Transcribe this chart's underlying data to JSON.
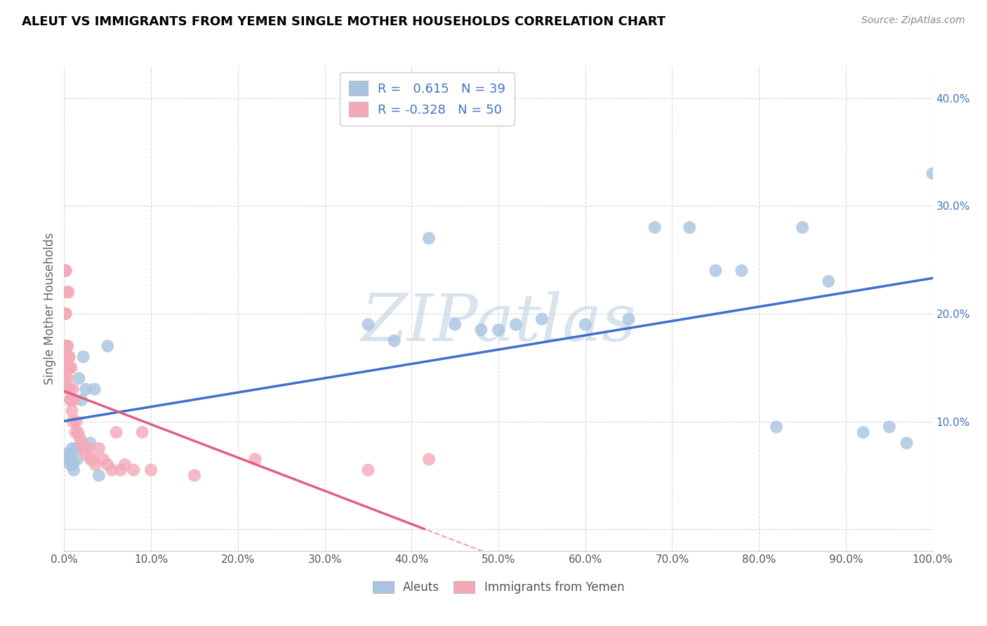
{
  "title": "ALEUT VS IMMIGRANTS FROM YEMEN SINGLE MOTHER HOUSEHOLDS CORRELATION CHART",
  "source": "Source: ZipAtlas.com",
  "ylabel": "Single Mother Households",
  "xmin": 0.0,
  "xmax": 1.0,
  "ymin": -0.02,
  "ymax": 0.43,
  "xticks": [
    0.0,
    0.1,
    0.2,
    0.3,
    0.4,
    0.5,
    0.6,
    0.7,
    0.8,
    0.9,
    1.0
  ],
  "xtick_labels": [
    "0.0%",
    "10.0%",
    "20.0%",
    "30.0%",
    "40.0%",
    "50.0%",
    "60.0%",
    "70.0%",
    "80.0%",
    "90.0%",
    "100.0%"
  ],
  "ytick_positions": [
    0.0,
    0.1,
    0.2,
    0.3,
    0.4
  ],
  "ytick_labels": [
    "",
    "10.0%",
    "20.0%",
    "30.0%",
    "40.0%"
  ],
  "aleut_color": "#a8c4e0",
  "yemen_color": "#f4a8b8",
  "aleut_line_color": "#3d6fcc",
  "yemen_line_color": "#e06080",
  "aleut_R": 0.615,
  "aleut_N": 39,
  "yemen_R": -0.328,
  "yemen_N": 50,
  "watermark": "ZIPatlas",
  "aleut_x": [
    0.003,
    0.005,
    0.006,
    0.007,
    0.008,
    0.009,
    0.01,
    0.011,
    0.013,
    0.015,
    0.017,
    0.02,
    0.022,
    0.025,
    0.03,
    0.035,
    0.04,
    0.05,
    0.35,
    0.38,
    0.42,
    0.45,
    0.48,
    0.5,
    0.52,
    0.55,
    0.6,
    0.65,
    0.68,
    0.72,
    0.75,
    0.78,
    0.82,
    0.85,
    0.88,
    0.92,
    0.95,
    0.97,
    1.0
  ],
  "aleut_y": [
    0.07,
    0.065,
    0.07,
    0.06,
    0.065,
    0.075,
    0.06,
    0.055,
    0.075,
    0.065,
    0.14,
    0.12,
    0.16,
    0.13,
    0.08,
    0.13,
    0.05,
    0.17,
    0.19,
    0.175,
    0.27,
    0.19,
    0.185,
    0.185,
    0.19,
    0.195,
    0.19,
    0.195,
    0.28,
    0.28,
    0.24,
    0.24,
    0.095,
    0.28,
    0.23,
    0.09,
    0.095,
    0.08,
    0.33
  ],
  "yemen_x": [
    0.001,
    0.001,
    0.001,
    0.001,
    0.002,
    0.002,
    0.002,
    0.003,
    0.003,
    0.003,
    0.004,
    0.004,
    0.005,
    0.005,
    0.005,
    0.006,
    0.006,
    0.007,
    0.007,
    0.008,
    0.008,
    0.009,
    0.01,
    0.01,
    0.011,
    0.013,
    0.014,
    0.016,
    0.018,
    0.02,
    0.022,
    0.025,
    0.028,
    0.03,
    0.033,
    0.036,
    0.04,
    0.045,
    0.05,
    0.055,
    0.06,
    0.065,
    0.07,
    0.08,
    0.09,
    0.1,
    0.15,
    0.22,
    0.35,
    0.42
  ],
  "yemen_y": [
    0.14,
    0.17,
    0.2,
    0.24,
    0.15,
    0.2,
    0.24,
    0.15,
    0.17,
    0.22,
    0.14,
    0.17,
    0.13,
    0.16,
    0.22,
    0.13,
    0.16,
    0.12,
    0.15,
    0.12,
    0.15,
    0.11,
    0.1,
    0.13,
    0.12,
    0.09,
    0.1,
    0.09,
    0.085,
    0.08,
    0.075,
    0.07,
    0.075,
    0.065,
    0.065,
    0.06,
    0.075,
    0.065,
    0.06,
    0.055,
    0.09,
    0.055,
    0.06,
    0.055,
    0.09,
    0.055,
    0.05,
    0.065,
    0.055,
    0.065
  ]
}
